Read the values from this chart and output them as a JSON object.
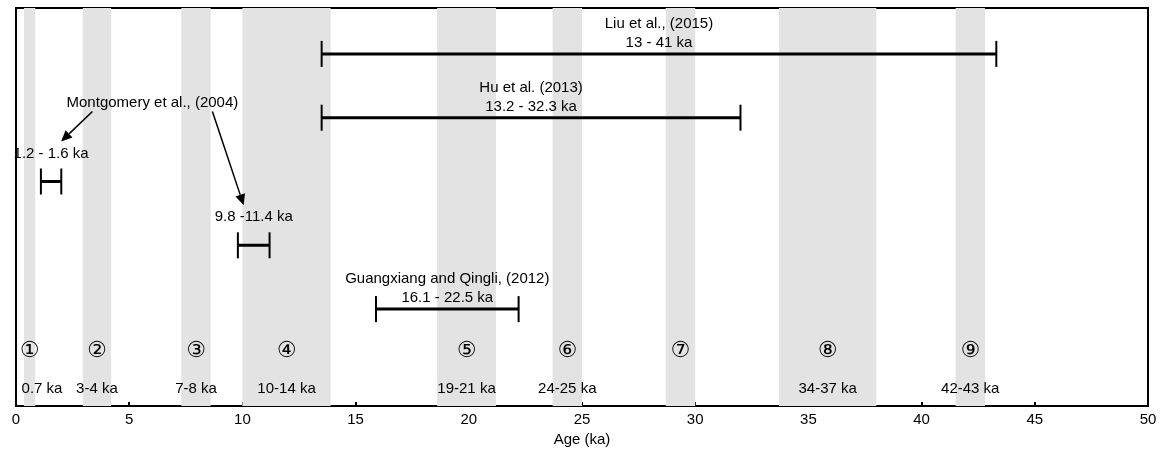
{
  "chart_data": {
    "type": "bar",
    "orientation": "horizontal",
    "xlabel": "Age (ka)",
    "categories": [
      null,
      null,
      null,
      null,
      null
    ],
    "series": [
      {
        "color": "#000000",
        "base": [
          13.5,
          13.5,
          1.1,
          9.8,
          15.9
        ],
        "values": [
          29.8,
          18.5,
          0.9,
          1.4,
          6.3
        ]
      }
    ],
    "xlim": [
      0,
      50
    ],
    "xticks": [
      0,
      5,
      10,
      15,
      20,
      25,
      30,
      35,
      40,
      45,
      50
    ],
    "tick_labels": "x",
    "grid": false,
    "bands": [
      {
        "axis": "x",
        "from": 0.35,
        "to": 0.85,
        "label": "0.7 ka",
        "color": "#e3e3e3"
      },
      {
        "axis": "x",
        "from": 2.95,
        "to": 4.2,
        "label": "3-4 ka",
        "color": "#e3e3e3"
      },
      {
        "axis": "x",
        "from": 7.3,
        "to": 8.6,
        "label": "7-8 ka",
        "color": "#e3e3e3"
      },
      {
        "axis": "x",
        "from": 10.0,
        "to": 13.9,
        "label": "10-14 ka",
        "color": "#e3e3e3"
      },
      {
        "axis": "x",
        "from": 18.6,
        "to": 21.2,
        "label": "19-21 ka",
        "color": "#e3e3e3"
      },
      {
        "axis": "x",
        "from": 23.7,
        "to": 25.0,
        "label": "24-25 ka",
        "color": "#e3e3e3"
      },
      {
        "axis": "x",
        "from": 28.7,
        "to": 30.0,
        "label": null,
        "color": "#e3e3e3"
      },
      {
        "axis": "x",
        "from": 33.7,
        "to": 38.0,
        "label": "34-37 ka",
        "color": "#e3e3e3"
      },
      {
        "axis": "x",
        "from": 41.5,
        "to": 42.8,
        "label": "42-43 ka",
        "color": "#e3e3e3"
      }
    ],
    "annotations": [
      "Liu et al., (2015)\n13 - 41 ka",
      "Hu et al. (2013)\n13.2 - 32.3 ka",
      "1.2 - 1.6 ka",
      "9.8 -11.4 ka",
      "Guangxiang and Qingli, (2012)\n16.1 - 22.5 ka",
      "Montgomery et al., (2004)",
      "①",
      "②",
      "③",
      "④",
      "⑤",
      "⑥",
      "⑦",
      "⑧",
      "⑨"
    ]
  }
}
